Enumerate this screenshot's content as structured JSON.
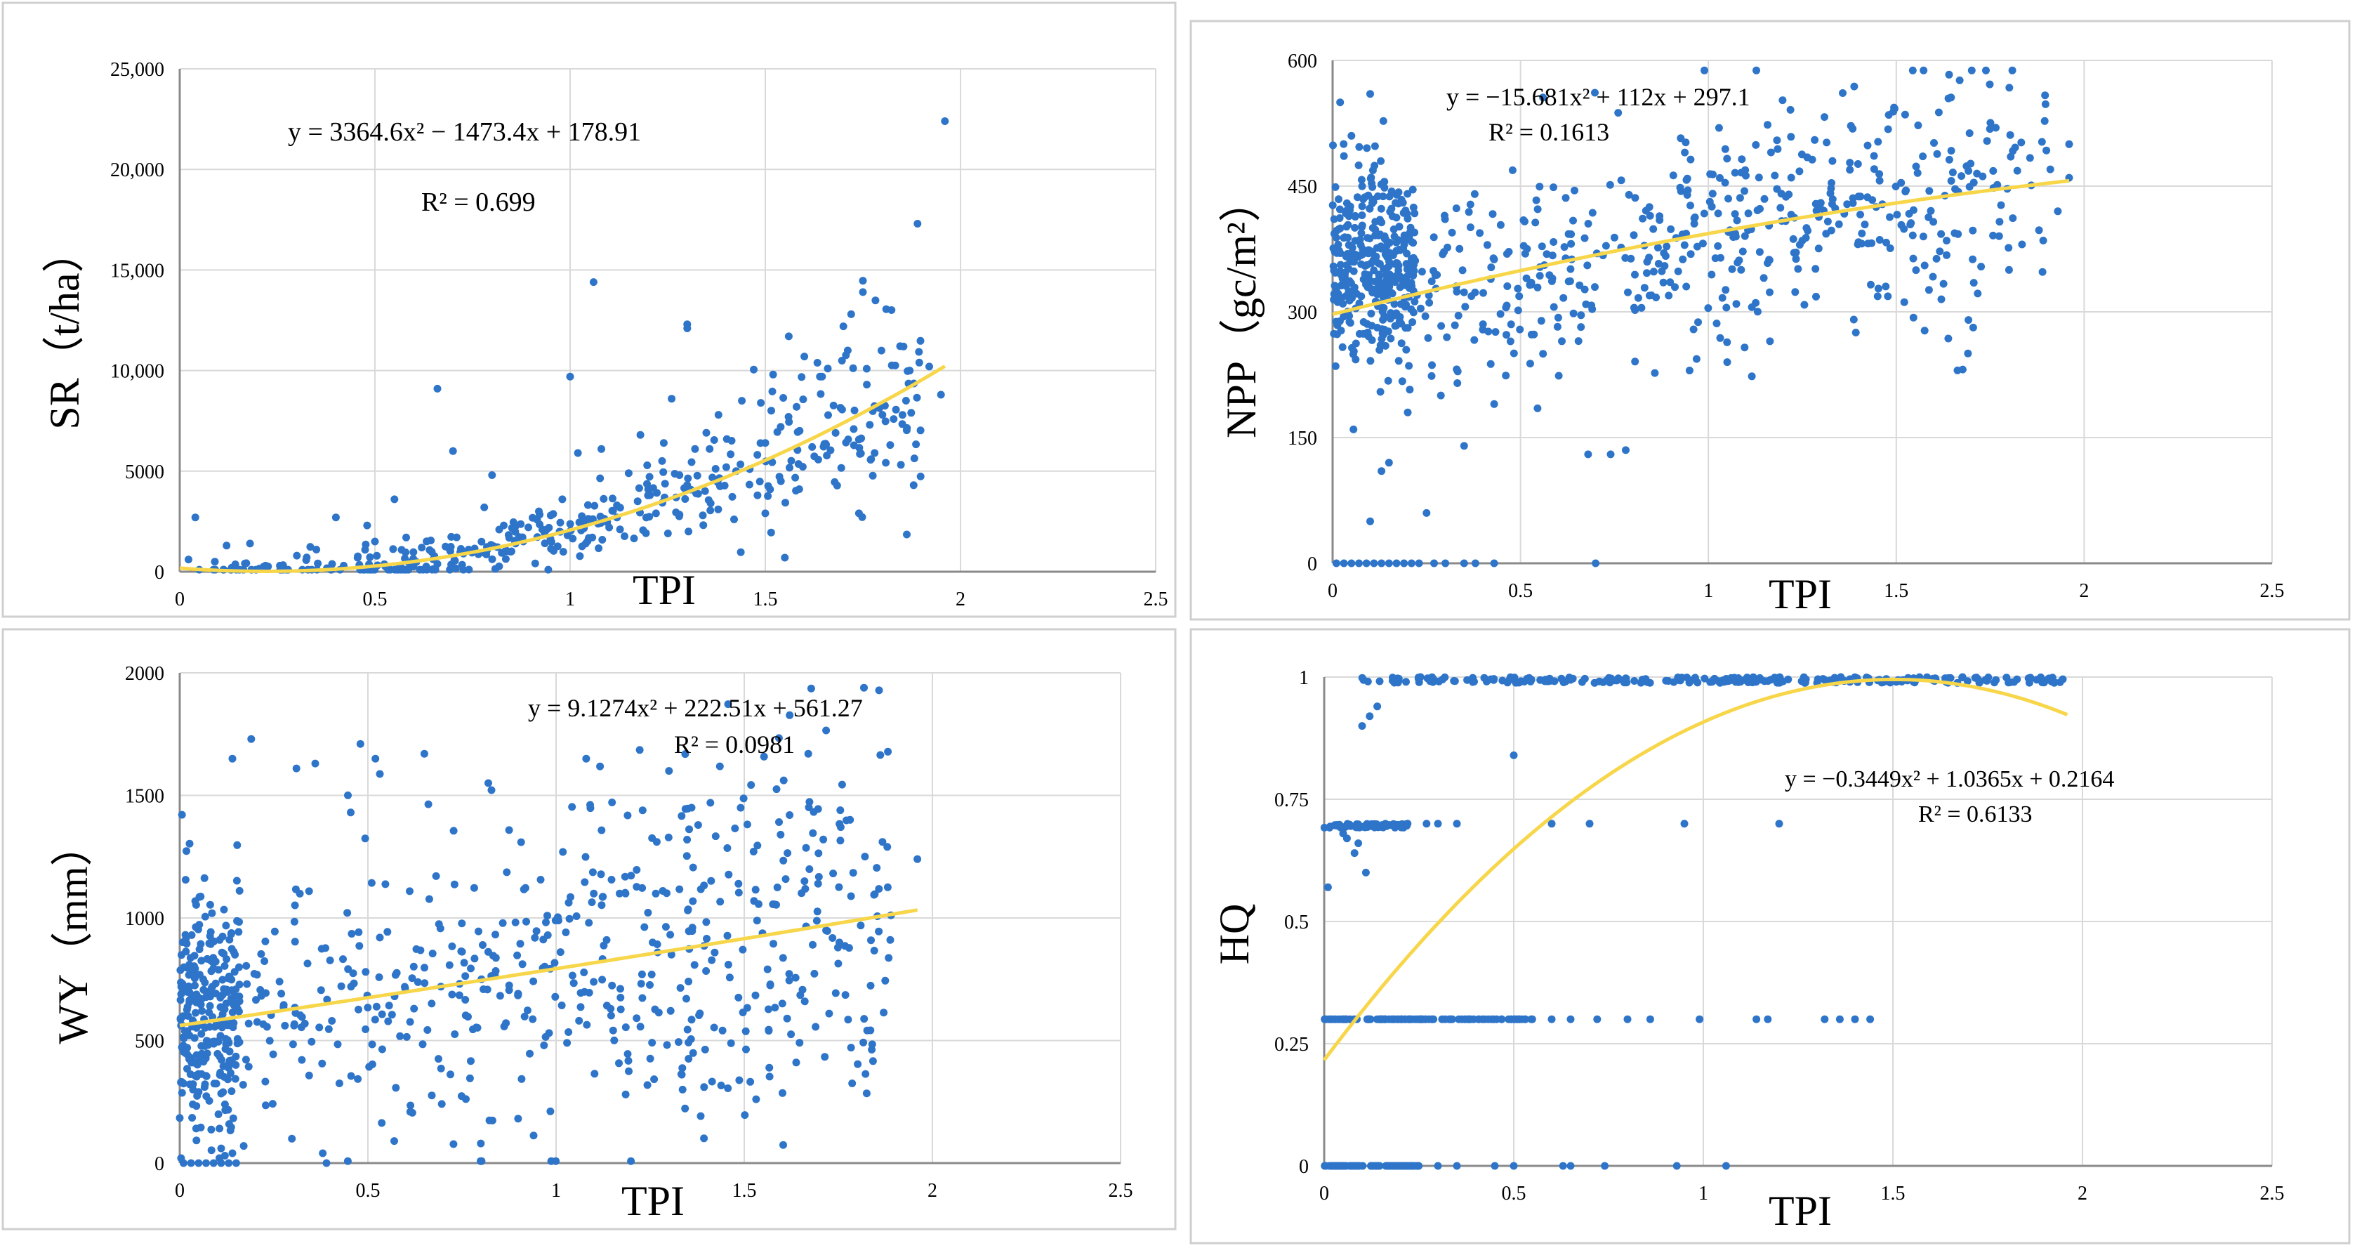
{
  "figure": {
    "colors": {
      "points": "#2e75c9",
      "trend": "#f7d64a",
      "grid": "#d9d9d9",
      "axis": "#8a8a8a",
      "frame": "#cfcfcf"
    }
  },
  "chart_data": [
    {
      "id": "sr",
      "type": "scatter",
      "xlabel": "TPI",
      "ylabel": "SR（t/ha）",
      "xlim": [
        0,
        2.5
      ],
      "ylim": [
        0,
        25000
      ],
      "xticks": [
        0,
        0.5,
        1,
        1.5,
        2,
        2.5
      ],
      "xtick_labels": [
        "0",
        "0.5",
        "1",
        "1.5",
        "2",
        "2.5"
      ],
      "yticks": [
        0,
        5000,
        10000,
        15000,
        20000,
        25000
      ],
      "ytick_labels": [
        "0",
        "5000",
        "10,000",
        "15,000",
        "20,000",
        "25,000"
      ],
      "equation": "y = 3364.6x² − 1473.4x + 178.91",
      "r2": "R² = 0.699",
      "trend": {
        "type": "poly2",
        "a": 3364.6,
        "b": -1473.4,
        "c": 178.91,
        "xmin": 0,
        "xmax": 1.96
      },
      "points": [
        [
          0.04,
          2700
        ],
        [
          0.09,
          500
        ],
        [
          0.12,
          1300
        ],
        [
          0.18,
          1400
        ],
        [
          0.22,
          300
        ],
        [
          0.3,
          800
        ],
        [
          0.35,
          1100
        ],
        [
          0.4,
          2700
        ],
        [
          0.42,
          300
        ],
        [
          0.48,
          2300
        ],
        [
          0.5,
          1500
        ],
        [
          0.55,
          3600
        ],
        [
          0.58,
          1700
        ],
        [
          0.62,
          1200
        ],
        [
          0.66,
          9100
        ],
        [
          0.7,
          6000
        ],
        [
          0.74,
          1100
        ],
        [
          0.78,
          3200
        ],
        [
          0.8,
          4800
        ],
        [
          0.83,
          2300
        ],
        [
          0.86,
          1400
        ],
        [
          0.88,
          1500
        ],
        [
          0.92,
          3000
        ],
        [
          0.94,
          2100
        ],
        [
          0.98,
          3600
        ],
        [
          1.0,
          9700
        ],
        [
          1.02,
          5900
        ],
        [
          1.04,
          1400
        ],
        [
          1.06,
          14400
        ],
        [
          1.08,
          6100
        ],
        [
          1.1,
          2200
        ],
        [
          1.12,
          3300
        ],
        [
          1.15,
          4900
        ],
        [
          1.18,
          6800
        ],
        [
          1.2,
          4100
        ],
        [
          1.22,
          2900
        ],
        [
          1.24,
          6400
        ],
        [
          1.26,
          8600
        ],
        [
          1.28,
          4800
        ],
        [
          1.3,
          12300
        ],
        [
          1.3,
          12100
        ],
        [
          1.32,
          6100
        ],
        [
          1.34,
          2800
        ],
        [
          1.36,
          3400
        ],
        [
          1.38,
          7800
        ],
        [
          1.4,
          5200
        ],
        [
          1.42,
          2600
        ],
        [
          1.44,
          8500
        ],
        [
          1.46,
          5100
        ],
        [
          1.48,
          3800
        ],
        [
          1.5,
          6400
        ],
        [
          1.5,
          2900
        ],
        [
          1.52,
          9800
        ],
        [
          1.54,
          4500
        ],
        [
          1.55,
          700
        ],
        [
          1.56,
          11700
        ],
        [
          1.58,
          8200
        ],
        [
          1.6,
          10700
        ],
        [
          1.62,
          6200
        ],
        [
          1.64,
          9700
        ],
        [
          1.66,
          10100
        ],
        [
          1.68,
          6900
        ],
        [
          1.7,
          12200
        ],
        [
          1.72,
          12800
        ],
        [
          1.74,
          2900
        ],
        [
          1.75,
          13900
        ],
        [
          1.76,
          9300
        ],
        [
          1.78,
          5900
        ],
        [
          1.8,
          7800
        ],
        [
          1.82,
          6300
        ],
        [
          1.88,
          4300
        ],
        [
          1.89,
          17300
        ],
        [
          1.92,
          10200
        ],
        [
          1.95,
          8800
        ],
        [
          1.96,
          22400
        ]
      ],
      "cloud": {
        "seed": 11,
        "n": 380,
        "xmin": 0,
        "xmax": 1.9,
        "noise": 0.3,
        "noise_abs": 500,
        "xpow": 0.85
      }
    },
    {
      "id": "npp",
      "type": "scatter",
      "xlabel": "TPI",
      "ylabel": "NPP（gc/m²）",
      "xlim": [
        0,
        2.5
      ],
      "ylim": [
        0,
        600
      ],
      "xticks": [
        0,
        0.5,
        1,
        1.5,
        2,
        2.5
      ],
      "xtick_labels": [
        "0",
        "0.5",
        "1",
        "1.5",
        "2",
        "2.5"
      ],
      "yticks": [
        0,
        150,
        300,
        450,
        600
      ],
      "ytick_labels": [
        "0",
        "150",
        "300",
        "450",
        "600"
      ],
      "equation": "y = −15.681x² + 112x + 297.1",
      "r2": "R² = 0.1613",
      "trend": {
        "type": "poly2",
        "a": -15.681,
        "b": 112,
        "c": 297.1,
        "xmin": 0,
        "xmax": 1.96
      },
      "points": [
        [
          0.02,
          550
        ],
        [
          0.05,
          510
        ],
        [
          0.1,
          560
        ],
        [
          0.13,
          110
        ],
        [
          0.15,
          120
        ],
        [
          0.1,
          50
        ],
        [
          0.2,
          180
        ],
        [
          0.25,
          60
        ],
        [
          0.35,
          140
        ],
        [
          0.43,
          190
        ],
        [
          0.56,
          250
        ],
        [
          0.61,
          265
        ],
        [
          0.68,
          130
        ],
        [
          0.74,
          130
        ],
        [
          0.78,
          135
        ],
        [
          0.95,
          230
        ],
        [
          1.05,
          240
        ],
        [
          1.25,
          385
        ],
        [
          1.48,
          535
        ],
        [
          1.62,
          315
        ],
        [
          1.8,
          350
        ],
        [
          1.91,
          470
        ],
        [
          1.93,
          420
        ],
        [
          1.96,
          500
        ],
        [
          1.96,
          460
        ]
      ],
      "zero_points": [
        0.01,
        0.03,
        0.05,
        0.07,
        0.09,
        0.11,
        0.13,
        0.15,
        0.17,
        0.19,
        0.21,
        0.23,
        0.27,
        0.3,
        0.35,
        0.38,
        0.43,
        0.7
      ],
      "cloud": {
        "seed": 23,
        "n": 560,
        "xmin": 0,
        "xmax": 1.9,
        "noise": 0.16,
        "noise_abs": 25,
        "xpow": 0.9,
        "left_cluster": {
          "n": 300,
          "xmax": 0.22,
          "center": 360,
          "spread": 90
        }
      }
    },
    {
      "id": "wy",
      "type": "scatter",
      "xlabel": "TPI",
      "ylabel": "WY（mm）",
      "xlim": [
        0,
        2.5
      ],
      "ylim": [
        0,
        2000
      ],
      "xticks": [
        0,
        0.5,
        1,
        1.5,
        2,
        2.5
      ],
      "xtick_labels": [
        "0",
        "0.5",
        "1",
        "1.5",
        "2",
        "2.5"
      ],
      "yticks": [
        0,
        500,
        1000,
        1500,
        2000
      ],
      "ytick_labels": [
        "0",
        "500",
        "1000",
        "1500",
        "2000"
      ],
      "equation": "y = 9.1274x² + 222.51x + 561.27",
      "r2": "R² = 0.0981",
      "trend": {
        "type": "poly2",
        "a": 9.1274,
        "b": 222.51,
        "c": 561.27,
        "xmin": 0,
        "xmax": 1.96
      },
      "points": [
        [
          0.14,
          1650
        ],
        [
          0.19,
          1730
        ],
        [
          0.31,
          1610
        ],
        [
          0.36,
          1630
        ],
        [
          0.48,
          1710
        ],
        [
          0.52,
          1650
        ],
        [
          0.65,
          1670
        ],
        [
          0.82,
          1550
        ],
        [
          1.08,
          1650
        ],
        [
          1.3,
          1600
        ],
        [
          1.36,
          1450
        ],
        [
          1.41,
          1470
        ],
        [
          1.71,
          1320
        ],
        [
          1.88,
          1290
        ],
        [
          1.96,
          1240
        ],
        [
          0.11,
          60
        ],
        [
          0.12,
          30
        ],
        [
          0.14,
          40
        ],
        [
          0.17,
          70
        ],
        [
          0.38,
          40
        ],
        [
          0.57,
          90
        ],
        [
          0.8,
          80
        ]
      ],
      "zero_points": [
        0.01,
        0.03,
        0.05,
        0.07,
        0.09,
        0.11,
        0.13,
        0.15,
        0.39
      ],
      "cloud": {
        "seed": 37,
        "n": 560,
        "xmin": 0,
        "xmax": 1.9,
        "noise": 0.42,
        "noise_abs": 120,
        "xpow": 0.9,
        "left_cluster": {
          "n": 260,
          "xmax": 0.16,
          "center": 600,
          "spread": 420
        }
      }
    },
    {
      "id": "hq",
      "type": "scatter",
      "xlabel": "TPI",
      "ylabel": "HQ",
      "xlim": [
        0,
        2.5
      ],
      "ylim": [
        0,
        1
      ],
      "xticks": [
        0,
        0.5,
        1,
        1.5,
        2,
        2.5
      ],
      "xtick_labels": [
        "0",
        "0.5",
        "1",
        "1.5",
        "2",
        "2.5"
      ],
      "yticks": [
        0,
        0.25,
        0.5,
        0.75,
        1
      ],
      "ytick_labels": [
        "0",
        "0.25",
        "0.5",
        "0.75",
        "1"
      ],
      "equation": "y = −0.3449x² + 1.0365x + 0.2164",
      "r2": "R² = 0.6133",
      "trend": {
        "type": "poly2",
        "a": -0.3449,
        "b": 1.0365,
        "c": 0.2164,
        "xmin": 0,
        "xmax": 1.96
      },
      "points": [
        [
          0.01,
          0.57
        ],
        [
          0.05,
          0.68
        ],
        [
          0.08,
          0.64
        ],
        [
          0.09,
          0.66
        ],
        [
          0.11,
          0.6
        ],
        [
          0.06,
          0.67
        ],
        [
          0.12,
          0.92
        ],
        [
          0.1,
          0.9
        ],
        [
          0.14,
          0.94
        ],
        [
          0.5,
          0.84
        ],
        [
          0.6,
          0.7
        ],
        [
          0.7,
          0.7
        ],
        [
          0.95,
          0.7
        ],
        [
          1.2,
          0.7
        ],
        [
          0.35,
          0.7
        ],
        [
          0.3,
          0.7
        ],
        [
          0.27,
          0.7
        ],
        [
          0.22,
          0.7
        ]
      ],
      "bands": [
        {
          "y": 1.0,
          "n": 260,
          "xmin": 0.1,
          "xmax": 1.96,
          "jitter": 0.012
        },
        {
          "y": 0.7,
          "n": 70,
          "xmin": 0.0,
          "xmax": 0.22,
          "jitter": 0.008
        },
        {
          "y": 0.3,
          "n": 110,
          "xmin": 0.0,
          "xmax": 0.55,
          "jitter": 0.0
        },
        {
          "y": 0.0,
          "n": 90,
          "xmin": 0.0,
          "xmax": 0.25,
          "jitter": 0.0
        }
      ],
      "band_extras": [
        [
          0.6,
          0.3
        ],
        [
          0.65,
          0.3
        ],
        [
          0.72,
          0.3
        ],
        [
          0.8,
          0.3
        ],
        [
          0.86,
          0.3
        ],
        [
          0.99,
          0.3
        ],
        [
          1.14,
          0.3
        ],
        [
          1.17,
          0.3
        ],
        [
          1.32,
          0.3
        ],
        [
          1.36,
          0.3
        ],
        [
          1.4,
          0.3
        ],
        [
          1.44,
          0.3
        ],
        [
          0.3,
          0
        ],
        [
          0.35,
          0
        ],
        [
          0.45,
          0
        ],
        [
          0.5,
          0
        ],
        [
          0.63,
          0
        ],
        [
          0.65,
          0
        ],
        [
          0.74,
          0
        ],
        [
          0.93,
          0
        ],
        [
          1.06,
          0
        ]
      ]
    }
  ]
}
